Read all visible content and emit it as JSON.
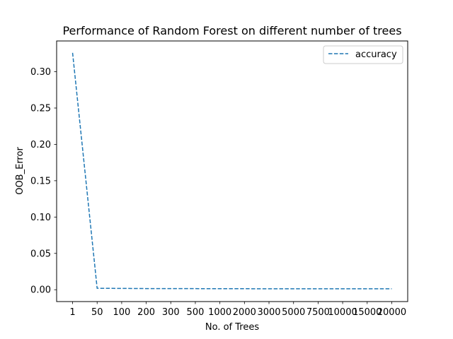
{
  "chart_data": {
    "type": "line",
    "title": "Performance of Random Forest on different number of trees",
    "xlabel": "No. of Trees",
    "ylabel": "OOB_Error",
    "categories": [
      "1",
      "50",
      "100",
      "200",
      "300",
      "500",
      "1000",
      "2000",
      "3000",
      "5000",
      "7500",
      "10000",
      "15000",
      "20000"
    ],
    "series": [
      {
        "name": "accuracy",
        "color": "#1f77b4",
        "line_style": "dashed",
        "values": [
          0.326,
          0.002,
          0.0018,
          0.0016,
          0.0015,
          0.0015,
          0.0014,
          0.0014,
          0.0013,
          0.0013,
          0.0013,
          0.0013,
          0.0013,
          0.0013
        ]
      }
    ],
    "yticks": [
      0.0,
      0.05,
      0.1,
      0.15,
      0.2,
      0.25,
      0.3
    ],
    "ytick_labels": [
      "0.00",
      "0.05",
      "0.10",
      "0.15",
      "0.20",
      "0.25",
      "0.30"
    ],
    "ylim": [
      -0.0163,
      0.3423
    ],
    "grid": false,
    "legend_position": "top-right"
  }
}
